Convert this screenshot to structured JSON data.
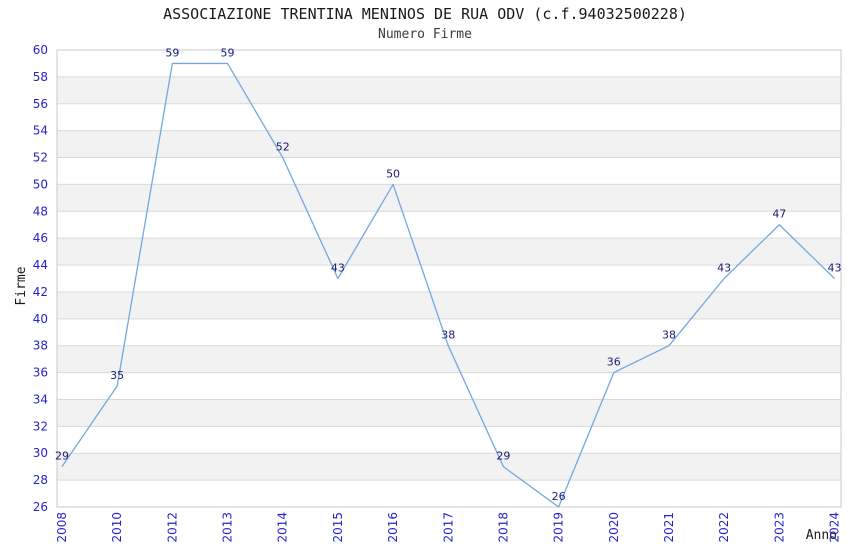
{
  "chart_data": {
    "type": "line",
    "title": "ASSOCIAZIONE TRENTINA MENINOS DE RUA ODV (c.f.94032500228)",
    "subtitle": "Numero Firme",
    "xlabel": "Anno",
    "ylabel": "Firme",
    "categories": [
      "2008",
      "2010",
      "2012",
      "2013",
      "2014",
      "2015",
      "2016",
      "2017",
      "2018",
      "2019",
      "2020",
      "2021",
      "2022",
      "2023",
      "2024"
    ],
    "values": [
      29,
      35,
      59,
      59,
      52,
      43,
      50,
      38,
      29,
      26,
      36,
      38,
      43,
      47,
      43
    ],
    "ylim": [
      26,
      60
    ],
    "ytick_step": 2,
    "yticks": [
      26,
      28,
      30,
      32,
      34,
      36,
      38,
      40,
      42,
      44,
      46,
      48,
      50,
      52,
      54,
      56,
      58,
      60
    ],
    "grid": "horizontal",
    "bands": "alternating-gray",
    "legend": "none",
    "point_labels_visible": true,
    "x_axis_label_rotation": -90,
    "colors": {
      "line": "#74a7e0",
      "tick_label": "#2424cc",
      "point_label": "#1b1b78",
      "band_fill": "#f2f2f2",
      "gridline": "#d9d9d9",
      "plot_border": "#c9c9c9",
      "title_text": "#1a1a1a",
      "axis_title_text": "#1a1a1a"
    }
  }
}
